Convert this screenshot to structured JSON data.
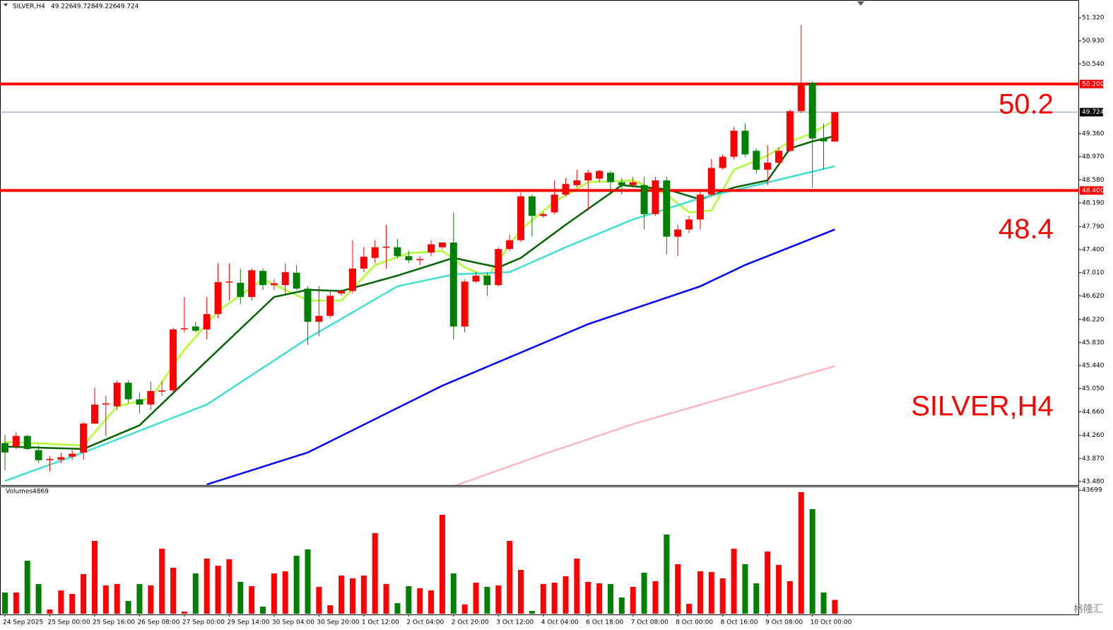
{
  "chart_data": {
    "type": "candlestick",
    "symbol": "SILVER,H4",
    "categories": [
      "24 Sep 2025",
      null,
      null,
      null,
      "25 Sep 00:00",
      null,
      null,
      null,
      "25 Sep 16:00",
      null,
      null,
      null,
      "26 Sep 08:00",
      null,
      null,
      null,
      "27 Sep 00:00",
      null,
      null,
      null,
      "29 Sep 14:00",
      null,
      null,
      null,
      "30 Sep 04:00",
      null,
      null,
      null,
      "30 Sep 20:00",
      null,
      null,
      null,
      "1 Oct 12:00",
      null,
      null,
      null,
      "2 Oct 04:00",
      null,
      null,
      null,
      "2 Oct 20:00",
      null,
      null,
      null,
      "3 Oct 12:00",
      null,
      null,
      null,
      "4 Oct 04:00",
      null,
      null,
      null,
      "6 Oct 18:00",
      null,
      null,
      null,
      "7 Oct 08:00",
      null,
      null,
      null,
      "8 Oct 00:00",
      null,
      null,
      null,
      "8 Oct 16:00",
      null,
      null,
      null,
      "9 Oct 08:00",
      null,
      null,
      null,
      "10 Oct 00:00",
      null,
      null
    ],
    "open": [
      44.13,
      44.07,
      44.25,
      44.01,
      43.84,
      43.85,
      43.9,
      43.97,
      44.46,
      44.78,
      44.75,
      45.15,
      44.87,
      44.78,
      45.0,
      45.02,
      46.06,
      46.1,
      46.05,
      46.31,
      46.85,
      46.84,
      46.6,
      47.04,
      46.8,
      46.8,
      47.01,
      46.74,
      46.18,
      46.28,
      46.66,
      46.7,
      47.08,
      47.26,
      47.44,
      47.44,
      47.29,
      47.22,
      47.35,
      47.44,
      47.52,
      46.1,
      46.86,
      46.96,
      46.8,
      47.41,
      47.56,
      48.3,
      47.97,
      48.03,
      48.33,
      48.49,
      48.57,
      48.6,
      48.7,
      48.54,
      48.49,
      48.49,
      48.0,
      48.57,
      47.62,
      47.74,
      47.91,
      48.33,
      48.78,
      48.97,
      49.41,
      49.07,
      48.75,
      48.87,
      49.07,
      49.74,
      50.22,
      49.28,
      49.226
    ],
    "high": [
      44.27,
      44.31,
      44.27,
      44.09,
      43.91,
      43.97,
      44.01,
      44.49,
      45.07,
      44.93,
      45.19,
      45.19,
      44.99,
      45.17,
      45.17,
      46.08,
      46.6,
      46.18,
      46.6,
      47.17,
      47.17,
      47.08,
      47.08,
      47.08,
      46.9,
      47.17,
      47.14,
      46.78,
      46.78,
      46.72,
      46.72,
      47.56,
      47.44,
      47.56,
      47.82,
      47.58,
      47.38,
      47.29,
      47.56,
      47.52,
      48.03,
      46.9,
      47.02,
      47.02,
      47.44,
      47.65,
      48.37,
      48.33,
      48.03,
      48.57,
      48.61,
      48.75,
      48.75,
      48.75,
      48.73,
      48.61,
      48.63,
      48.63,
      48.63,
      48.63,
      47.82,
      47.97,
      48.42,
      48.93,
      49.01,
      49.47,
      49.53,
      49.11,
      49.17,
      49.13,
      49.77,
      51.2,
      50.24,
      49.53,
      49.728
    ],
    "low": [
      43.67,
      44.03,
      44.01,
      43.79,
      43.65,
      43.79,
      43.85,
      43.85,
      44.45,
      44.25,
      44.69,
      44.81,
      44.63,
      44.69,
      44.93,
      44.99,
      46.0,
      46.0,
      45.88,
      46.24,
      46.54,
      46.48,
      46.54,
      46.72,
      46.72,
      46.66,
      46.72,
      45.79,
      45.94,
      46.24,
      46.62,
      46.66,
      47.02,
      47.17,
      47.08,
      47.26,
      47.17,
      47.14,
      47.29,
      47.41,
      45.88,
      46.0,
      46.84,
      46.62,
      46.78,
      47.38,
      47.53,
      47.62,
      47.94,
      48.0,
      48.3,
      48.45,
      48.06,
      48.54,
      48.33,
      48.33,
      48.45,
      47.74,
      47.97,
      47.32,
      47.29,
      47.68,
      47.74,
      48.3,
      48.75,
      48.93,
      48.97,
      48.69,
      48.49,
      48.81,
      49.05,
      49.71,
      48.45,
      48.75,
      49.226
    ],
    "close": [
      43.97,
      44.25,
      44.03,
      43.84,
      43.86,
      43.89,
      43.95,
      44.46,
      44.78,
      44.8,
      45.15,
      44.87,
      44.78,
      45.01,
      45.02,
      46.05,
      46.07,
      46.03,
      46.31,
      46.85,
      46.86,
      46.6,
      47.05,
      46.8,
      46.83,
      47.02,
      46.74,
      46.18,
      46.28,
      46.62,
      46.7,
      47.08,
      47.28,
      47.44,
      47.45,
      47.29,
      47.22,
      47.24,
      47.49,
      47.52,
      46.1,
      46.86,
      46.96,
      46.8,
      47.41,
      47.56,
      48.3,
      47.97,
      48.0,
      48.33,
      48.51,
      48.57,
      48.7,
      48.73,
      48.54,
      48.49,
      48.54,
      48.0,
      48.57,
      47.62,
      47.74,
      47.91,
      48.33,
      48.78,
      48.97,
      49.41,
      49.01,
      48.75,
      48.87,
      49.07,
      49.74,
      50.2,
      49.28,
      49.23,
      49.724
    ],
    "up_color": "#ff0000",
    "down_color": "#008000",
    "ylim": [
      43.42,
      51.62
    ],
    "yticks": [
      {
        "value": 51.32,
        "label": "51.320"
      },
      {
        "value": 50.93,
        "label": "50.930"
      },
      {
        "value": 50.54,
        "label": "50.540"
      },
      {
        "value": 49.36,
        "label": "49.360"
      },
      {
        "value": 48.97,
        "label": "48.970"
      },
      {
        "value": 48.58,
        "label": "48.580"
      },
      {
        "value": 48.19,
        "label": "48.190"
      },
      {
        "value": 47.79,
        "label": "47.790"
      },
      {
        "value": 47.4,
        "label": "47.400"
      },
      {
        "value": 47.01,
        "label": "47.010"
      },
      {
        "value": 46.62,
        "label": "46.620"
      },
      {
        "value": 46.22,
        "label": "46.220"
      },
      {
        "value": 45.83,
        "label": "45.830"
      },
      {
        "value": 45.44,
        "label": "45.440"
      },
      {
        "value": 45.05,
        "label": "45.050"
      },
      {
        "value": 44.66,
        "label": "44.660"
      },
      {
        "value": 44.26,
        "label": "44.260"
      },
      {
        "value": 43.87,
        "label": "43.870"
      },
      {
        "value": 43.48,
        "label": "43.480"
      }
    ],
    "levels": [
      {
        "value": 50.2,
        "label": "50.200",
        "note": "50.2",
        "color": "#ff0000"
      },
      {
        "value": 48.4,
        "label": "48.400",
        "note": "48.4",
        "color": "#ff0000"
      }
    ],
    "current_price": 49.724,
    "indicators": [
      {
        "color": "#adff2f",
        "x": [
          0,
          7,
          10,
          13,
          16,
          19,
          23,
          27,
          30,
          33,
          36,
          39,
          41,
          43,
          46,
          49,
          52,
          56,
          59,
          61,
          63,
          65,
          68,
          70,
          72,
          74
        ],
        "values": [
          44.15,
          44.09,
          44.75,
          44.89,
          45.71,
          46.36,
          46.9,
          46.54,
          46.54,
          47.14,
          47.34,
          47.38,
          47.1,
          46.94,
          47.74,
          48.21,
          48.54,
          48.57,
          48.33,
          48.03,
          48.06,
          48.75,
          48.99,
          49.23,
          49.37,
          49.59
        ]
      },
      {
        "color": "#006400",
        "x": [
          0,
          7,
          12,
          18,
          24,
          27,
          30,
          35,
          40,
          44,
          46,
          50,
          55,
          59,
          62,
          65,
          68,
          70,
          72,
          74
        ],
        "values": [
          44.07,
          44.03,
          44.43,
          45.52,
          46.6,
          46.72,
          46.7,
          46.96,
          47.26,
          47.1,
          47.26,
          47.82,
          48.49,
          48.42,
          48.25,
          48.45,
          48.57,
          49.11,
          49.23,
          49.32
        ]
      },
      {
        "color": "#40e0d0",
        "x": [
          0,
          7,
          18,
          27,
          35,
          40,
          45,
          50,
          56,
          62,
          67,
          74
        ],
        "values": [
          43.49,
          43.97,
          44.78,
          45.9,
          46.78,
          46.98,
          47.02,
          47.44,
          47.91,
          48.27,
          48.49,
          48.81
        ]
      },
      {
        "color": "#0000ff",
        "x": [
          18,
          27,
          39,
          52,
          62,
          66,
          74
        ],
        "values": [
          43.43,
          43.97,
          45.1,
          46.14,
          46.78,
          47.14,
          47.74
        ]
      },
      {
        "color": "#ffb6c1",
        "x": [
          40,
          48,
          56,
          74
        ],
        "values": [
          43.4,
          43.94,
          44.45,
          45.43
        ]
      }
    ],
    "volume_title": "Volumes",
    "volumes": [
      7500,
      7500,
      18750,
      10500,
      1500,
      8250,
      7000,
      14000,
      25750,
      10000,
      10500,
      4500,
      10500,
      10000,
      23000,
      16250,
      750,
      14250,
      19500,
      17000,
      19250,
      11250,
      9750,
      2500,
      14250,
      15000,
      20500,
      22750,
      9500,
      3000,
      13500,
      12500,
      13500,
      28500,
      10500,
      3750,
      9750,
      9000,
      8250,
      35000,
      14250,
      3250,
      11000,
      9500,
      10000,
      25750,
      15500,
      1000,
      10500,
      11000,
      13250,
      19500,
      11250,
      10750,
      10500,
      5750,
      9500,
      14500,
      11500,
      28000,
      17500,
      3500,
      15000,
      14750,
      12500,
      23000,
      17500,
      10750,
      22000,
      17250,
      11500,
      43000,
      37000,
      7500,
      4869
    ],
    "volume_ylim": [
      0,
      45000
    ],
    "volume_yticks": [
      43699
    ],
    "watermark": "格隆汇"
  }
}
